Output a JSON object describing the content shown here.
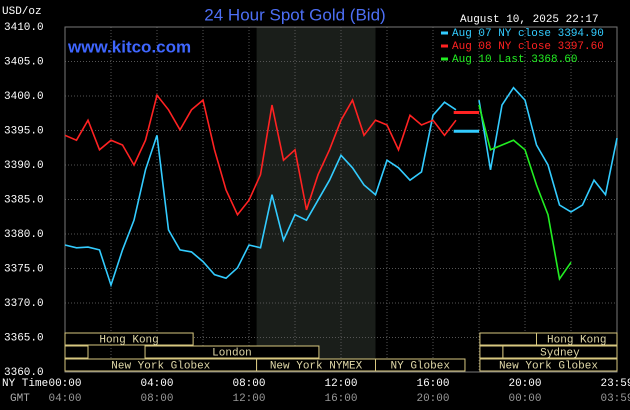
{
  "chart_data": {
    "type": "line",
    "title": "24 Hour Spot Gold (Bid)",
    "unit_label": "USD/oz",
    "timestamp": "August 10, 2025 22:17",
    "watermark": "www.kitco.com",
    "x": [
      0,
      0.5,
      1,
      1.5,
      2,
      2.5,
      3,
      3.5,
      4,
      4.5,
      5,
      5.5,
      6,
      6.5,
      7,
      7.5,
      8,
      8.5,
      9,
      9.5,
      10,
      10.5,
      11,
      11.5,
      12,
      12.5,
      13,
      13.5,
      14,
      14.5,
      15,
      15.5,
      16,
      16.5,
      17,
      17.5,
      18,
      18.5,
      19,
      19.5,
      20,
      20.5,
      21,
      21.5,
      22,
      22.5,
      23,
      23.5,
      24
    ],
    "series": [
      {
        "name": "Aug 07 NY close 3394.90",
        "color": "#33ccff",
        "close": 3394.9,
        "values": [
          3378.4,
          3378.0,
          3378.1,
          3377.7,
          3372.6,
          3377.7,
          3382.0,
          3389.3,
          3394.3,
          3380.6,
          3377.7,
          3377.4,
          3376.0,
          3374.1,
          3373.6,
          3375.1,
          3378.4,
          3378.0,
          3385.7,
          3379.1,
          3382.8,
          3382.0,
          3384.9,
          3387.8,
          3391.4,
          3389.6,
          3387.1,
          3385.7,
          3390.7,
          3389.6,
          3387.8,
          3389.0,
          3397.2,
          3399.1,
          3398.0,
          null,
          3399.4,
          3389.3,
          3398.7,
          3401.2,
          3399.4,
          3392.9,
          3390.0,
          3384.2,
          3383.2,
          3384.2,
          3387.8,
          3385.7,
          3393.9
        ]
      },
      {
        "name": "Aug 08 NY close 3397.60",
        "color": "#ff2222",
        "close": 3397.6,
        "values": [
          3394.3,
          3393.6,
          3396.5,
          3392.2,
          3393.6,
          3392.9,
          3390.0,
          3393.6,
          3400.1,
          3398.0,
          3395.1,
          3398.0,
          3399.4,
          3392.2,
          3386.4,
          3382.8,
          3384.9,
          3388.6,
          3398.7,
          3390.7,
          3392.2,
          3383.5,
          3388.6,
          3392.2,
          3396.5,
          3399.4,
          3394.3,
          3396.5,
          3395.8,
          3392.2,
          3397.2,
          3395.8,
          3396.5,
          3394.3,
          3396.5,
          null,
          null,
          null,
          null,
          null,
          null,
          null,
          null,
          null,
          null,
          null,
          null,
          null,
          null
        ]
      },
      {
        "name": "Aug 10 Last 3368.60",
        "color": "#22ee22",
        "values": [
          null,
          null,
          null,
          null,
          null,
          null,
          null,
          null,
          null,
          null,
          null,
          null,
          null,
          null,
          null,
          null,
          null,
          null,
          null,
          null,
          null,
          null,
          null,
          null,
          null,
          null,
          null,
          null,
          null,
          null,
          null,
          null,
          null,
          null,
          null,
          null,
          3398.7,
          3392.2,
          3392.9,
          3393.6,
          3392.2,
          3387.1,
          3382.8,
          3373.5,
          3375.9,
          null,
          null,
          null,
          null
        ]
      }
    ],
    "xlim": [
      0,
      24
    ],
    "xticks": [
      {
        "value": 0,
        "label": "00:00"
      },
      {
        "value": 4,
        "label": "04:00"
      },
      {
        "value": 8,
        "label": "08:00"
      },
      {
        "value": 12,
        "label": "12:00"
      },
      {
        "value": 16,
        "label": "16:00"
      },
      {
        "value": 20,
        "label": "20:00"
      },
      {
        "value": 24,
        "label": "23:59"
      }
    ],
    "x_row_label": "NY Time",
    "gmt_row_label": "GMT",
    "gmt_labels": [
      "04:00",
      "08:00",
      "12:00",
      "16:00",
      "20:00",
      "00:00",
      "03:59"
    ],
    "x_grid": [
      2,
      4,
      6,
      8,
      10,
      12,
      14,
      16,
      18,
      20,
      22
    ],
    "ylim": [
      3360,
      3410
    ],
    "yticks": [
      {
        "value": 3360,
        "label": "3360.0"
      },
      {
        "value": 3365,
        "label": "3365.0"
      },
      {
        "value": 3370,
        "label": "3370.0"
      },
      {
        "value": 3375,
        "label": "3375.0"
      },
      {
        "value": 3380,
        "label": "3380.0"
      },
      {
        "value": 3385,
        "label": "3385.0"
      },
      {
        "value": 3390,
        "label": "3390.0"
      },
      {
        "value": 3395,
        "label": "3395.0"
      },
      {
        "value": 3400,
        "label": "3400.0"
      },
      {
        "value": 3405,
        "label": "3405.0"
      },
      {
        "value": 3410,
        "label": "3410.0"
      }
    ],
    "grid": true,
    "shaded_region": [
      8.33,
      13.5
    ],
    "sessions": [
      {
        "name": "Hong Kong",
        "start": 0,
        "end": 5.57,
        "row": 0
      },
      {
        "start": 18.04,
        "end": 20.5,
        "row": 0
      },
      {
        "name": "Hong Kong",
        "start": 20.5,
        "end": 24,
        "row": 0
      },
      {
        "start": 0,
        "end": 1,
        "row": 1
      },
      {
        "name": "London",
        "start": 3.48,
        "end": 11.04,
        "row": 1
      },
      {
        "start": 18.04,
        "end": 19.04,
        "row": 1
      },
      {
        "name": "Sydney",
        "start": 19.04,
        "end": 24,
        "row": 1
      },
      {
        "name": "New York Globex",
        "start": 0,
        "end": 8.33,
        "row": 2
      },
      {
        "name": "New York NYMEX",
        "start": 8.33,
        "end": 13.5,
        "row": 2
      },
      {
        "name": "NY Globex",
        "start": 13.5,
        "end": 17.39,
        "row": 2
      },
      {
        "name": "New York Globex",
        "start": 18.04,
        "end": 24,
        "row": 2
      }
    ]
  }
}
